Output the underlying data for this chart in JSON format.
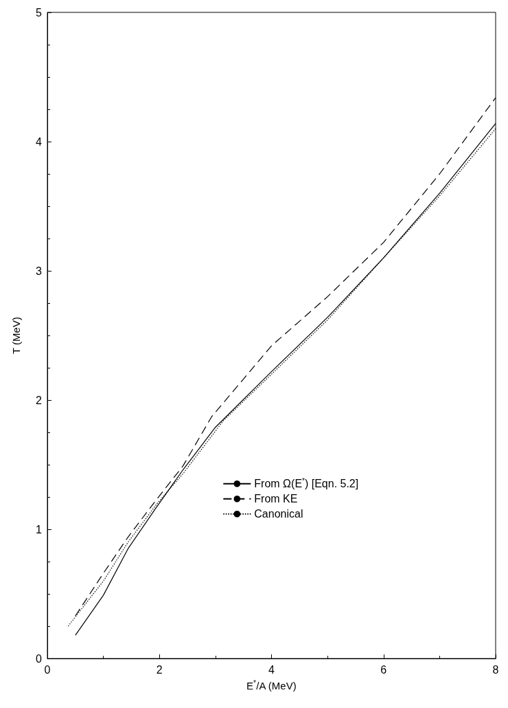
{
  "chart_data": {
    "type": "line",
    "xlabel": "E$^{*}$/A (MeV)",
    "ylabel": "T (MeV)",
    "xlim": [
      0,
      8
    ],
    "xticks": [
      0,
      2,
      4,
      6,
      8
    ],
    "ylim": [
      0,
      5
    ],
    "yticks": [
      0,
      1,
      2,
      3,
      4,
      5
    ],
    "grid": false,
    "legend": "right",
    "marker": "none",
    "series": [
      {
        "name": "From Ω(E$^{*}$) [Eqn. 5.2]",
        "color": "#000000",
        "line_style": "solid",
        "x": [
          0.5,
          1.0,
          1.44,
          1.93,
          2.42,
          3.0,
          4.0,
          5.0,
          6.0,
          7.0,
          8.0
        ],
        "values": [
          0.18,
          0.49,
          0.85,
          1.16,
          1.46,
          1.79,
          2.22,
          2.64,
          3.1,
          3.6,
          4.14
        ]
      },
      {
        "name": "From KE",
        "color": "#000000",
        "line_style": "dashed",
        "x": [
          0.5,
          1.0,
          1.44,
          1.93,
          2.42,
          2.93,
          4.0,
          5.0,
          6.0,
          7.0,
          8.0
        ],
        "values": [
          0.33,
          0.66,
          0.94,
          1.22,
          1.49,
          1.87,
          2.42,
          2.8,
          3.22,
          3.75,
          4.34
        ]
      },
      {
        "name": "Canonical",
        "color": "#000000",
        "line_style": "dotted",
        "x": [
          0.37,
          1.0,
          1.44,
          1.96,
          2.42,
          3.14,
          4.0,
          5.0,
          6.0,
          7.0,
          8.0
        ],
        "values": [
          0.25,
          0.6,
          0.9,
          1.2,
          1.43,
          1.84,
          2.2,
          2.62,
          3.1,
          3.58,
          4.1
        ]
      }
    ]
  }
}
